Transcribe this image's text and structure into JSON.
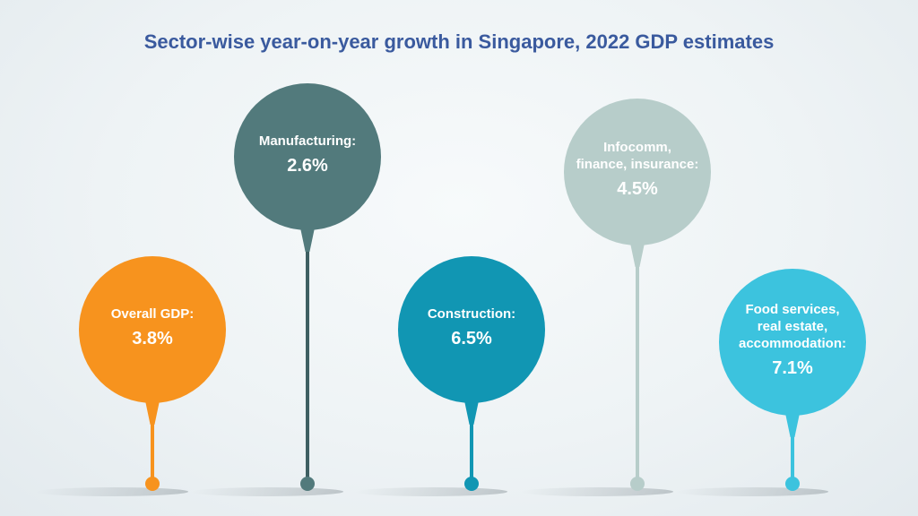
{
  "title": "Sector-wise year-on-year growth in Singapore, 2022 GDP estimates",
  "chart_data": {
    "type": "bar",
    "title": "Sector-wise year-on-year growth in Singapore, 2022 GDP estimates",
    "categories": [
      "Overall GDP:",
      "Manufacturing:",
      "Construction:",
      "Infocomm, finance, insurance:",
      "Food services, real estate, accommodation:"
    ],
    "label_lines": [
      [
        "Overall GDP:"
      ],
      [
        "Manufacturing:"
      ],
      [
        "Construction:"
      ],
      [
        "Infocomm,",
        "finance, insurance:"
      ],
      [
        "Food services,",
        "real estate,",
        "accommodation:"
      ]
    ],
    "values": [
      3.8,
      2.6,
      6.5,
      4.5,
      7.1
    ],
    "value_labels": [
      "3.8%",
      "2.6%",
      "6.5%",
      "4.5%",
      "7.1%"
    ],
    "colors": [
      "#f7931e",
      "#527a7c",
      "#1196b3",
      "#b7cdca",
      "#3cc3de"
    ],
    "stem_colors": [
      "#f7931e",
      "#3e5f62",
      "#1196b3",
      "#b7cdca",
      "#3cc3de"
    ]
  }
}
